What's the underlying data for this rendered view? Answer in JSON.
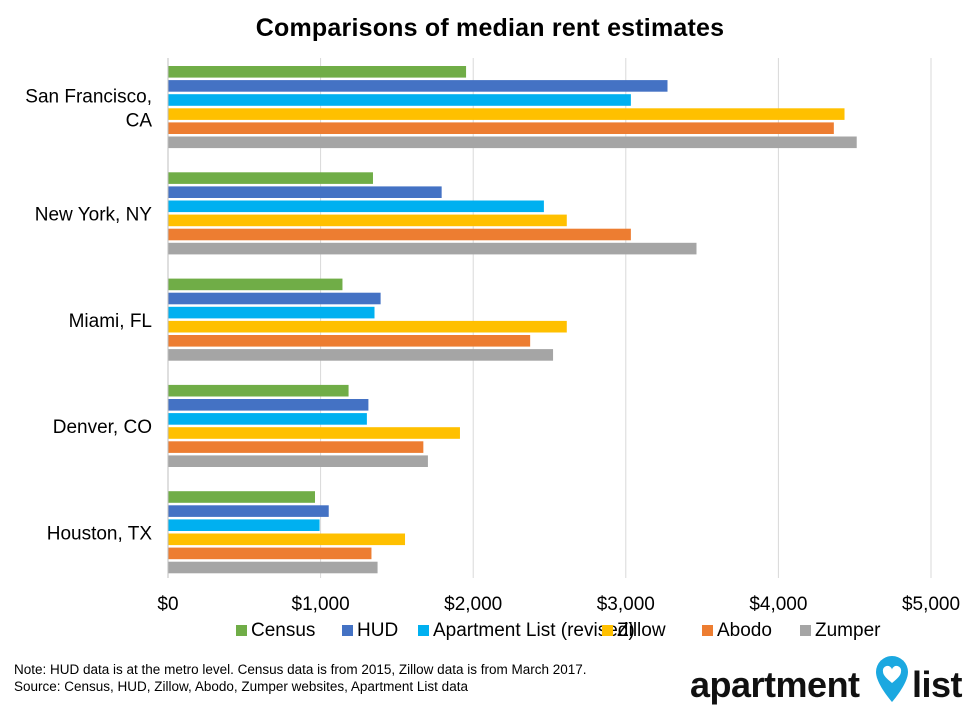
{
  "chart_data": {
    "type": "bar",
    "orientation": "horizontal",
    "title": "Comparisons of median rent estimates",
    "categories": [
      "San Francisco, CA",
      "New York, NY",
      "Miami, FL",
      "Denver, CO",
      "Houston, TX"
    ],
    "series": [
      {
        "name": "Census",
        "color": "#70AD47",
        "values": [
          1950,
          1340,
          1140,
          1180,
          960
        ]
      },
      {
        "name": "HUD",
        "color": "#4472C4",
        "values": [
          3270,
          1790,
          1390,
          1310,
          1050
        ]
      },
      {
        "name": "Apartment List (revised)",
        "color": "#00B0F0",
        "values": [
          3030,
          2460,
          1350,
          1300,
          990
        ]
      },
      {
        "name": "Zillow",
        "color": "#FFC000",
        "values": [
          4430,
          2610,
          2610,
          1910,
          1550
        ]
      },
      {
        "name": "Abodo",
        "color": "#ED7D31",
        "values": [
          4360,
          3030,
          2370,
          1670,
          1330
        ]
      },
      {
        "name": "Zumper",
        "color": "#A5A5A5",
        "values": [
          4510,
          3460,
          2520,
          1700,
          1370
        ]
      }
    ],
    "xlim": [
      0,
      5000
    ],
    "xticks": [
      0,
      1000,
      2000,
      3000,
      4000,
      5000
    ],
    "xtick_labels": [
      "$0",
      "$1,000",
      "$2,000",
      "$3,000",
      "$4,000",
      "$5,000"
    ],
    "grid": "vertical",
    "legend_position": "bottom"
  },
  "category_label_lines": [
    [
      "San Francisco,",
      "CA"
    ],
    [
      "New York, NY"
    ],
    [
      "Miami, FL"
    ],
    [
      "Denver, CO"
    ],
    [
      "Houston, TX"
    ]
  ],
  "footer": {
    "note_line1": "Note: HUD data is at the metro level. Census data is from 2015, Zillow data is from March 2017.",
    "note_line2": "Source: Census, HUD, Zillow, Abodo, Zumper websites, Apartment List data"
  },
  "logo": {
    "left_text": "apartment",
    "right_text": "list",
    "accent_color": "#1BA8E0",
    "icon": "map-pin-heart-icon"
  },
  "colors": {
    "gridline": "#D9D9D9",
    "axis": "#BFBFBF"
  }
}
